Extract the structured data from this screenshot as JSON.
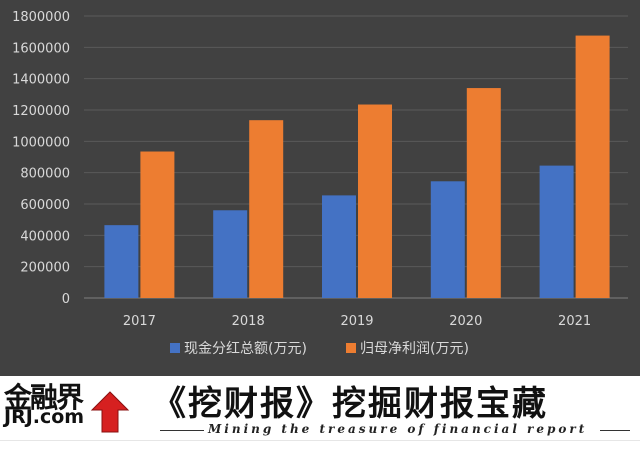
{
  "chart_data": {
    "type": "bar",
    "categories": [
      "2017",
      "2018",
      "2019",
      "2020",
      "2021"
    ],
    "series": [
      {
        "name": "现金分红总额(万元)",
        "color": "#4472c4",
        "values": [
          465000,
          560000,
          655000,
          745000,
          845000
        ]
      },
      {
        "name": "归母净利润(万元)",
        "color": "#ed7d31",
        "values": [
          935000,
          1135000,
          1235000,
          1340000,
          1675000
        ]
      }
    ],
    "yticks": [
      "0",
      "200000",
      "400000",
      "600000",
      "800000",
      "1000000",
      "1200000",
      "1400000",
      "1600000",
      "1800000"
    ],
    "ylim": [
      0,
      1800000
    ],
    "grid": true,
    "legend": "bottom",
    "title": "",
    "xlabel": "",
    "ylabel": ""
  },
  "footer": {
    "logo_cn": "金融界",
    "logo_en": "JRJ.com",
    "slogan": "《挖财报》挖掘财报宝藏",
    "tagline": "Mining the treasure of financial report"
  }
}
